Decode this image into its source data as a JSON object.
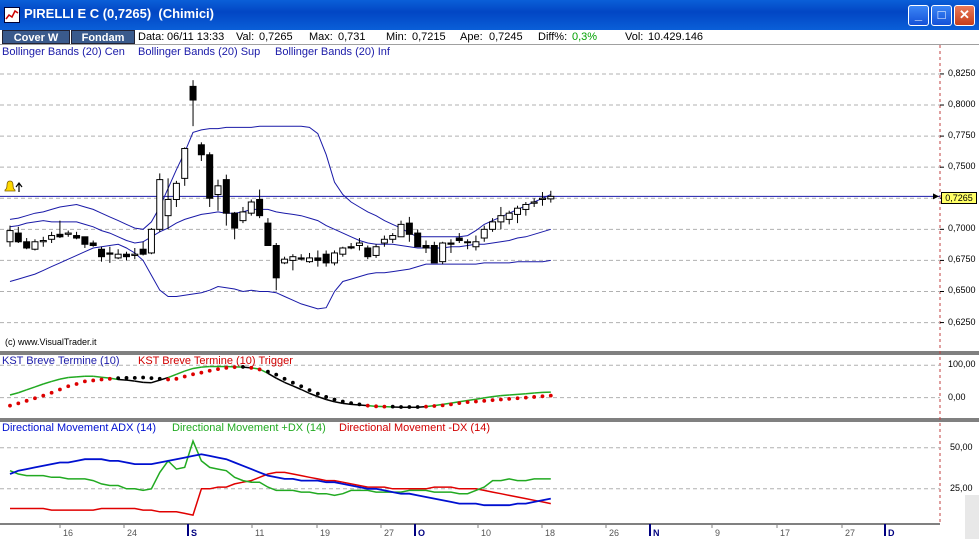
{
  "window": {
    "title": "PIRELLI E C (0,7265)  (Chimici)",
    "minimize_glyph": "_",
    "maximize_glyph": "□",
    "close_glyph": "✕"
  },
  "toolbar": {
    "cover_label": "Cover W",
    "fondam_label": "Fondam"
  },
  "quote": {
    "data_label": "Data:",
    "data_value": "06/11 13:33",
    "val_label": "Val:",
    "val_value": "0,7265",
    "max_label": "Max:",
    "max_value": "0,731",
    "min_label": "Min:",
    "min_value": "0,7215",
    "ape_label": "Ape:",
    "ape_value": "0,7245",
    "diff_label": "Diff%:",
    "diff_value": "0,3%",
    "vol_label": "Vol:",
    "vol_value": "10.429.146"
  },
  "colors": {
    "titlebar": "#0a5fd8",
    "bollinger": "#1a1aa8",
    "kst": "#000000",
    "kst_trigger": "#dd0000",
    "adx": "#0010d0",
    "plus_dx": "#22aa22",
    "minus_dx": "#e00000",
    "diff_positive": "#00a000"
  },
  "price_panel": {
    "legend": [
      "Bollinger Bands (20) Cen",
      "Bollinger Bands (20) Sup",
      "Bollinger Bands (20) Inf"
    ],
    "watermark": "(c) www.VisualTrader.it",
    "y_ticks": [
      "0,8250",
      "0,8000",
      "0,7750",
      "0,7500",
      "0,7250",
      "0,7000",
      "0,6750",
      "0,6500",
      "0,6250"
    ],
    "last_price_label": "0,7265",
    "alert_icon": "bell-icon",
    "arrow_icon": "up-arrow-icon"
  },
  "kst_panel": {
    "legend": [
      "KST Breve Termine (10)",
      "KST Breve Termine (10) Trigger"
    ],
    "y_ticks": [
      "100,00",
      "0,00"
    ]
  },
  "dm_panel": {
    "legend": [
      "Directional Movement ADX (14)",
      "Directional Movement +DX (14)",
      "Directional Movement -DX (14)"
    ],
    "y_ticks": [
      "50,00",
      "25,00"
    ]
  },
  "x_axis": {
    "labels": [
      "16",
      "24",
      "S",
      "11",
      "19",
      "27",
      "O",
      "10",
      "18",
      "26",
      "N",
      "9",
      "17",
      "27",
      "D"
    ]
  },
  "chart_data": {
    "type": "line",
    "candles": [
      [
        0.69,
        0.703,
        0.686,
        0.699
      ],
      [
        0.697,
        0.702,
        0.689,
        0.69
      ],
      [
        0.69,
        0.693,
        0.684,
        0.685
      ],
      [
        0.684,
        0.692,
        0.683,
        0.69
      ],
      [
        0.69,
        0.694,
        0.686,
        0.691
      ],
      [
        0.692,
        0.698,
        0.689,
        0.695
      ],
      [
        0.696,
        0.707,
        0.693,
        0.694
      ],
      [
        0.696,
        0.699,
        0.694,
        0.697
      ],
      [
        0.695,
        0.698,
        0.692,
        0.693
      ],
      [
        0.694,
        0.694,
        0.685,
        0.688
      ],
      [
        0.689,
        0.691,
        0.686,
        0.687
      ],
      [
        0.684,
        0.686,
        0.674,
        0.678
      ],
      [
        0.681,
        0.686,
        0.673,
        0.68
      ],
      [
        0.677,
        0.684,
        0.676,
        0.68
      ],
      [
        0.68,
        0.682,
        0.675,
        0.678
      ],
      [
        0.679,
        0.685,
        0.676,
        0.68
      ],
      [
        0.684,
        0.69,
        0.679,
        0.68
      ],
      [
        0.681,
        0.701,
        0.68,
        0.7
      ],
      [
        0.7,
        0.745,
        0.698,
        0.74
      ],
      [
        0.711,
        0.741,
        0.7,
        0.724
      ],
      [
        0.724,
        0.739,
        0.718,
        0.737
      ],
      [
        0.741,
        0.766,
        0.735,
        0.765
      ],
      [
        0.815,
        0.82,
        0.783,
        0.804
      ],
      [
        0.768,
        0.77,
        0.755,
        0.76
      ],
      [
        0.76,
        0.762,
        0.718,
        0.725
      ],
      [
        0.728,
        0.74,
        0.715,
        0.735
      ],
      [
        0.74,
        0.744,
        0.703,
        0.713
      ],
      [
        0.713,
        0.714,
        0.692,
        0.701
      ],
      [
        0.707,
        0.718,
        0.705,
        0.714
      ],
      [
        0.713,
        0.724,
        0.711,
        0.722
      ],
      [
        0.724,
        0.732,
        0.709,
        0.711
      ],
      [
        0.705,
        0.709,
        0.688,
        0.687
      ],
      [
        0.687,
        0.689,
        0.651,
        0.661
      ],
      [
        0.673,
        0.678,
        0.672,
        0.676
      ],
      [
        0.675,
        0.68,
        0.667,
        0.678
      ],
      [
        0.677,
        0.68,
        0.675,
        0.676
      ],
      [
        0.674,
        0.681,
        0.673,
        0.677
      ],
      [
        0.677,
        0.683,
        0.67,
        0.675
      ],
      [
        0.68,
        0.683,
        0.67,
        0.673
      ],
      [
        0.673,
        0.683,
        0.671,
        0.681
      ],
      [
        0.68,
        0.686,
        0.678,
        0.685
      ],
      [
        0.686,
        0.689,
        0.684,
        0.685
      ],
      [
        0.687,
        0.693,
        0.683,
        0.689
      ],
      [
        0.685,
        0.687,
        0.676,
        0.678
      ],
      [
        0.679,
        0.688,
        0.677,
        0.686
      ],
      [
        0.689,
        0.695,
        0.686,
        0.692
      ],
      [
        0.692,
        0.697,
        0.689,
        0.695
      ],
      [
        0.694,
        0.707,
        0.694,
        0.704
      ],
      [
        0.705,
        0.71,
        0.69,
        0.696
      ],
      [
        0.697,
        0.7,
        0.686,
        0.686
      ],
      [
        0.687,
        0.691,
        0.681,
        0.685
      ],
      [
        0.687,
        0.69,
        0.673,
        0.673
      ],
      [
        0.674,
        0.69,
        0.672,
        0.689
      ],
      [
        0.689,
        0.692,
        0.681,
        0.688
      ],
      [
        0.693,
        0.697,
        0.689,
        0.691
      ],
      [
        0.69,
        0.692,
        0.684,
        0.69
      ],
      [
        0.686,
        0.695,
        0.683,
        0.69
      ],
      [
        0.693,
        0.703,
        0.69,
        0.7
      ],
      [
        0.7,
        0.709,
        0.698,
        0.706
      ],
      [
        0.706,
        0.718,
        0.7,
        0.711
      ],
      [
        0.708,
        0.715,
        0.704,
        0.713
      ],
      [
        0.712,
        0.719,
        0.705,
        0.717
      ],
      [
        0.716,
        0.722,
        0.711,
        0.72
      ],
      [
        0.721,
        0.725,
        0.718,
        0.722
      ],
      [
        0.724,
        0.73,
        0.719,
        0.725
      ],
      [
        0.7245,
        0.731,
        0.7215,
        0.7265
      ]
    ],
    "boll_cen": [
      0.702,
      0.703,
      0.705,
      0.706,
      0.707,
      0.706,
      0.706,
      0.706,
      0.706,
      0.704,
      0.702,
      0.699,
      0.697,
      0.694,
      0.691,
      0.689,
      0.69,
      0.694,
      0.698,
      0.701,
      0.705,
      0.708,
      0.71,
      0.712,
      0.713,
      0.714,
      0.713,
      0.713,
      0.714,
      0.716,
      0.716,
      0.716,
      0.714,
      0.713,
      0.712,
      0.711,
      0.709,
      0.707,
      0.703,
      0.7,
      0.697,
      0.694,
      0.691,
      0.689,
      0.688,
      0.688,
      0.688,
      0.687,
      0.686,
      0.685,
      0.685,
      0.685,
      0.685,
      0.686,
      0.686,
      0.687,
      0.688,
      0.688,
      0.689,
      0.69,
      0.691,
      0.693,
      0.694,
      0.696,
      0.698,
      0.7
    ],
    "boll_sup": [
      0.708,
      0.709,
      0.711,
      0.713,
      0.714,
      0.716,
      0.718,
      0.719,
      0.72,
      0.718,
      0.716,
      0.713,
      0.71,
      0.707,
      0.704,
      0.701,
      0.7,
      0.706,
      0.718,
      0.733,
      0.748,
      0.762,
      0.778,
      0.78,
      0.781,
      0.781,
      0.782,
      0.782,
      0.782,
      0.782,
      0.783,
      0.783,
      0.783,
      0.783,
      0.783,
      0.783,
      0.782,
      0.777,
      0.76,
      0.738,
      0.728,
      0.722,
      0.718,
      0.714,
      0.711,
      0.707,
      0.704,
      0.701,
      0.697,
      0.694,
      0.694,
      0.694,
      0.694,
      0.694,
      0.694,
      0.695,
      0.699,
      0.704,
      0.707,
      0.71,
      0.713,
      0.716,
      0.719,
      0.722,
      0.725,
      0.728
    ],
    "boll_inf": [
      0.658,
      0.66,
      0.662,
      0.664,
      0.667,
      0.67,
      0.673,
      0.676,
      0.679,
      0.682,
      0.685,
      0.686,
      0.687,
      0.688,
      0.685,
      0.681,
      0.675,
      0.663,
      0.651,
      0.646,
      0.646,
      0.647,
      0.648,
      0.649,
      0.651,
      0.654,
      0.653,
      0.652,
      0.65,
      0.651,
      0.65,
      0.65,
      0.649,
      0.646,
      0.643,
      0.64,
      0.638,
      0.636,
      0.637,
      0.65,
      0.658,
      0.66,
      0.662,
      0.664,
      0.665,
      0.665,
      0.666,
      0.667,
      0.668,
      0.67,
      0.672,
      0.672,
      0.672,
      0.672,
      0.672,
      0.672,
      0.672,
      0.673,
      0.673,
      0.673,
      0.673,
      0.674,
      0.674,
      0.674,
      0.674,
      0.675
    ],
    "last_price": 0.7265,
    "ylim": [
      0.615,
      0.833
    ],
    "kst": [
      8,
      15,
      24,
      33,
      42,
      50,
      57,
      62,
      64,
      66,
      66,
      63,
      60,
      56,
      54,
      51,
      47,
      46,
      54,
      62,
      72,
      82,
      90,
      94,
      96,
      96,
      96,
      95,
      94,
      92,
      88,
      75,
      60,
      47,
      36,
      25,
      13,
      3,
      -6,
      -13,
      -18,
      -21,
      -23,
      -25,
      -27,
      -28,
      -29,
      -30,
      -30,
      -30,
      -28,
      -25,
      -21,
      -17,
      -13,
      -9,
      -5,
      -1,
      3,
      6,
      8,
      10,
      12,
      14,
      16,
      17
    ],
    "kst_trigger": [
      -25,
      -18,
      -10,
      -2,
      6,
      15,
      25,
      35,
      42,
      50,
      53,
      56,
      58,
      60,
      61,
      61,
      62,
      60,
      58,
      56,
      58,
      65,
      72,
      77,
      83,
      88,
      92,
      94,
      95,
      92,
      87,
      80,
      71,
      58,
      46,
      35,
      23,
      12,
      2,
      -6,
      -12,
      -17,
      -21,
      -25,
      -27,
      -28,
      -28,
      -29,
      -29,
      -29,
      -28,
      -26,
      -24,
      -21,
      -17,
      -14,
      -12,
      -10,
      -8,
      -6,
      -4,
      -2,
      0,
      2,
      4,
      6
    ],
    "kst_ylim": [
      -60,
      110
    ],
    "adx": [
      34,
      36,
      37,
      38,
      39,
      40,
      41,
      41,
      42,
      43,
      43,
      43,
      42,
      42,
      41,
      40,
      40,
      40,
      41,
      42,
      43,
      44,
      45,
      46,
      45,
      44,
      43,
      41,
      39,
      37,
      35,
      33,
      32,
      31,
      31,
      30,
      30,
      30,
      29,
      29,
      28,
      27,
      26,
      25,
      25,
      24,
      23,
      22,
      22,
      21,
      20,
      19,
      18,
      17,
      16,
      16,
      16,
      15,
      15,
      15,
      15,
      16,
      16,
      17,
      18,
      19
    ],
    "plus_dx": [
      36,
      34,
      33,
      33,
      33,
      32,
      32,
      31,
      31,
      31,
      30,
      28,
      27,
      27,
      25,
      25,
      24,
      25,
      35,
      42,
      37,
      38,
      54,
      42,
      38,
      37,
      36,
      32,
      30,
      29,
      29,
      26,
      24,
      24,
      24,
      23,
      23,
      22,
      22,
      21,
      22,
      24,
      24,
      24,
      23,
      23,
      23,
      23,
      24,
      24,
      24,
      23,
      23,
      23,
      22,
      22,
      24,
      26,
      30,
      30,
      31,
      30,
      30,
      31,
      31,
      31
    ],
    "minus_dx": [
      13,
      13,
      13,
      13,
      13,
      12,
      12,
      12,
      12,
      12,
      12,
      13,
      13,
      13,
      13,
      13,
      12,
      12,
      11,
      11,
      11,
      10,
      9,
      25,
      25,
      26,
      26,
      28,
      29,
      30,
      32,
      34,
      35,
      35,
      34,
      33,
      32,
      31,
      30,
      30,
      29,
      28,
      27,
      26,
      26,
      26,
      25,
      25,
      25,
      25,
      25,
      26,
      26,
      26,
      25,
      25,
      25,
      24,
      23,
      22,
      21,
      20,
      19,
      18,
      17,
      16
    ],
    "dm_ylim": [
      6,
      62
    ]
  }
}
